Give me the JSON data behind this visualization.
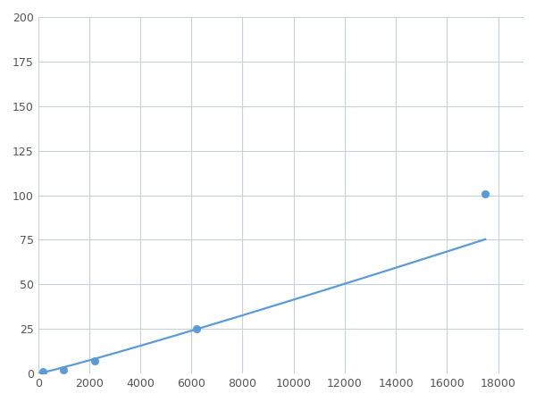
{
  "x_data": [
    200,
    1000,
    2200,
    6200,
    17500
  ],
  "y_data": [
    1.0,
    2.0,
    7.0,
    25.0,
    101.0
  ],
  "line_color": "#5b9bd5",
  "marker_color": "#5b9bd5",
  "marker_size": 6,
  "line_width": 1.6,
  "xlim": [
    0,
    19000
  ],
  "ylim": [
    0,
    200
  ],
  "xticks": [
    0,
    2000,
    4000,
    6000,
    8000,
    10000,
    12000,
    14000,
    16000,
    18000
  ],
  "yticks": [
    0,
    25,
    50,
    75,
    100,
    125,
    150,
    175,
    200
  ],
  "grid_color": "#c8d0d8",
  "bg_color": "#ffffff",
  "spine_color": "#aaaaaa",
  "tick_color": "#555555",
  "tick_fontsize": 9
}
